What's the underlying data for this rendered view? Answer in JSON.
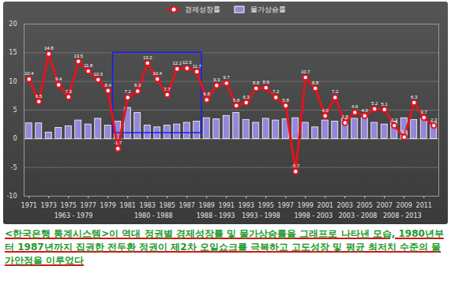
{
  "chart_data": {
    "type": "combo",
    "x": [
      1971,
      1972,
      1973,
      1974,
      1975,
      1976,
      1977,
      1978,
      1979,
      1980,
      1981,
      1982,
      1983,
      1984,
      1985,
      1986,
      1987,
      1988,
      1989,
      1990,
      1991,
      1992,
      1993,
      1994,
      1995,
      1996,
      1997,
      1998,
      1999,
      2000,
      2001,
      2002,
      2003,
      2004,
      2005,
      2006,
      2007,
      2008,
      2009,
      2010,
      2011,
      2012
    ],
    "series": [
      {
        "name": "경제성장률",
        "type": "line",
        "color": "#e3141e",
        "marker": "circle",
        "data_labels": true,
        "values": [
          10.4,
          6.5,
          14.8,
          9.4,
          7.3,
          13.5,
          11.8,
          10.3,
          8.4,
          -1.7,
          7.2,
          8.3,
          13.2,
          10.4,
          7.7,
          12.2,
          12.3,
          11.7,
          6.8,
          9.3,
          9.7,
          5.8,
          6.3,
          8.8,
          8.9,
          7.2,
          5.8,
          -5.7,
          10.7,
          8.8,
          4.0,
          7.2,
          2.8,
          4.6,
          4.0,
          5.2,
          5.1,
          2.3,
          0.3,
          6.3,
          3.7,
          2.3
        ],
        "value_labels": [
          "10.4",
          "6.5",
          "14.8",
          "9.4",
          "7.3",
          "13.5",
          "11.8",
          "10.3",
          "8.4",
          "-1.7",
          "7.2",
          "8.3",
          "13.2",
          "10.4",
          "7.7",
          "12.2",
          "12.3",
          "11.7",
          "6.8",
          "9.3",
          "9.7",
          "5.8",
          "6.3",
          "8.8",
          "8.9",
          "7.2",
          "5.8",
          "-5.7",
          "10.7",
          "8.8",
          "4.0",
          "7.2",
          "2.8",
          "4.6",
          "4.0",
          "5.2",
          "5.1",
          "2.3",
          "0.3",
          "6.3",
          "3.7",
          "2.3"
        ]
      },
      {
        "name": "물가상승률",
        "type": "bar",
        "color": "#9486d8",
        "data_labels": false,
        "values": [
          2.7,
          2.7,
          1.1,
          1.9,
          2.2,
          3.2,
          2.5,
          3.5,
          2.3,
          3.0,
          5.4,
          4.5,
          2.3,
          2.0,
          2.3,
          2.5,
          2.8,
          3.0,
          3.6,
          3.4,
          4.0,
          4.5,
          3.3,
          2.8,
          3.5,
          3.2,
          3.4,
          3.6,
          2.8,
          2.0,
          3.2,
          3.0,
          3.4,
          3.5,
          3.6,
          2.8,
          2.5,
          3.0,
          3.6,
          3.3,
          3.5,
          2.8
        ]
      }
    ],
    "xlim": [
      1970.5,
      2012.5
    ],
    "xticks": [
      1971,
      1973,
      1975,
      1977,
      1979,
      1981,
      1983,
      1985,
      1987,
      1989,
      1991,
      1993,
      1995,
      1997,
      1999,
      2001,
      2003,
      2005,
      2007,
      2009,
      2011
    ],
    "ylim": [
      -10,
      20
    ],
    "yticks": [
      -10,
      -5,
      0,
      5,
      10,
      15,
      20
    ],
    "grid": true,
    "legend": "top",
    "highlight": {
      "x": [
        1980,
        1988
      ],
      "y": [
        1,
        15
      ]
    },
    "annotations": [
      {
        "text": "1963 - 1979",
        "x": 1975.5
      },
      {
        "text": "1980 - 1988",
        "x": 1983.6
      },
      {
        "text": "1988 - 1993",
        "x": 1989.9
      },
      {
        "text": "1993 - 1998",
        "x": 1994.5
      },
      {
        "text": "1998 - 2003",
        "x": 1999.8
      },
      {
        "text": "2003 - 2008",
        "x": 2004.3
      },
      {
        "text": "2008 - 2013",
        "x": 2008.8
      }
    ],
    "caption": "<한국은행 통계시스템>이 역대 정권별 경제성장률 및 물가상승률을 그래프로 나타낸 모습, 1980년부터 1987년까지 집권한 전두환 정권이 제2차 오일쇼크를 극복하고 고도성장 및 평균 최저치 수준의 물가안정을 이루었다"
  }
}
